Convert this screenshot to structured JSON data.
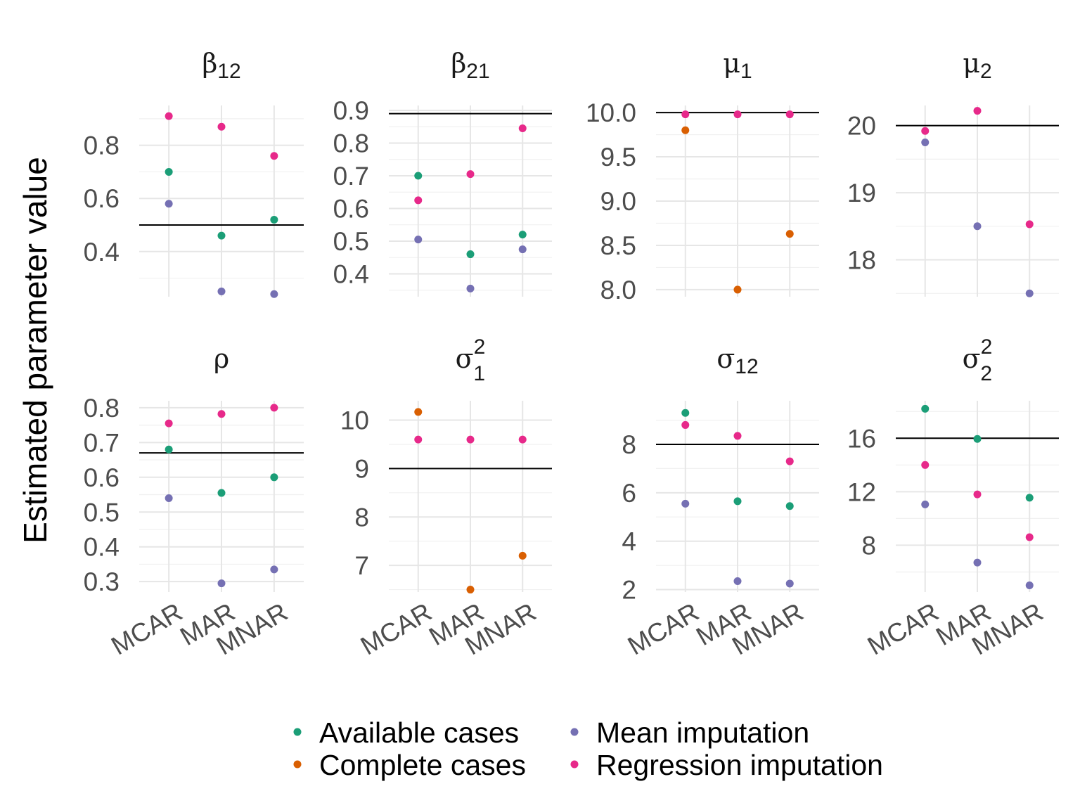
{
  "chart_data": {
    "type": "scatter",
    "ylabel": "Estimated parameter value",
    "categories": [
      "MCAR",
      "MAR",
      "MNAR"
    ],
    "colors": {
      "Available cases": "#1b9e77",
      "Complete cases": "#d95f02",
      "Mean imputation": "#7570b3",
      "Regression imputation": "#e7298a"
    },
    "legend": {
      "position": "bottom",
      "entries": [
        "Available cases",
        "Complete cases",
        "Mean imputation",
        "Regression imputation"
      ]
    },
    "grid": true,
    "panels": [
      {
        "title_base": "β",
        "title_sub": "12",
        "title_sup": "",
        "ylim": [
          0.23,
          0.95
        ],
        "major_ticks": [
          0.4,
          0.6,
          0.8
        ],
        "tick_labels": [
          "0.4",
          "0.6",
          "0.8"
        ],
        "true_value": 0.5,
        "series": [
          {
            "name": "Available cases",
            "values": [
              0.7,
              0.46,
              0.52
            ]
          },
          {
            "name": "Mean imputation",
            "values": [
              0.58,
              0.25,
              0.24
            ]
          },
          {
            "name": "Regression imputation",
            "values": [
              0.91,
              0.87,
              0.76
            ]
          }
        ]
      },
      {
        "title_base": "β",
        "title_sub": "21",
        "title_sup": "",
        "ylim": [
          0.33,
          0.915
        ],
        "major_ticks": [
          0.4,
          0.5,
          0.6,
          0.7,
          0.8,
          0.9
        ],
        "tick_labels": [
          "0.4",
          "0.5",
          "0.6",
          "0.7",
          "0.8",
          "0.9"
        ],
        "true_value": 0.89,
        "series": [
          {
            "name": "Available cases",
            "values": [
              0.7,
              0.46,
              0.52
            ]
          },
          {
            "name": "Mean imputation",
            "values": [
              0.505,
              0.355,
              0.475
            ]
          },
          {
            "name": "Regression imputation",
            "values": [
              0.625,
              0.705,
              0.845
            ]
          }
        ]
      },
      {
        "title_base": "μ",
        "title_sub": "1",
        "title_sup": "",
        "ylim": [
          7.92,
          10.08
        ],
        "major_ticks": [
          8.0,
          8.5,
          9.0,
          9.5,
          10.0
        ],
        "tick_labels": [
          "8.0",
          "8.5",
          "9.0",
          "9.5",
          "10.0"
        ],
        "true_value": 10.0,
        "series": [
          {
            "name": "Complete cases",
            "values": [
              9.8,
              8.0,
              8.63
            ]
          },
          {
            "name": "Regression imputation",
            "values": [
              9.98,
              9.98,
              9.98
            ]
          }
        ]
      },
      {
        "title_base": "μ",
        "title_sub": "2",
        "title_sup": "",
        "ylim": [
          17.45,
          20.3
        ],
        "major_ticks": [
          18,
          19,
          20
        ],
        "tick_labels": [
          "18",
          "19",
          "20"
        ],
        "true_value": 20.0,
        "series": [
          {
            "name": "Mean imputation",
            "values": [
              19.75,
              18.5,
              17.5
            ]
          },
          {
            "name": "Regression imputation",
            "values": [
              19.92,
              20.22,
              18.53
            ]
          }
        ]
      },
      {
        "title_base": "ρ",
        "title_sub": "",
        "title_sup": "",
        "ylim": [
          0.27,
          0.82
        ],
        "major_ticks": [
          0.3,
          0.4,
          0.5,
          0.6,
          0.7,
          0.8
        ],
        "tick_labels": [
          "0.3",
          "0.4",
          "0.5",
          "0.6",
          "0.7",
          "0.8"
        ],
        "true_value": 0.67,
        "series": [
          {
            "name": "Available cases",
            "values": [
              0.68,
              0.555,
              0.6
            ]
          },
          {
            "name": "Mean imputation",
            "values": [
              0.54,
              0.295,
              0.335
            ]
          },
          {
            "name": "Regression imputation",
            "values": [
              0.755,
              0.782,
              0.8
            ]
          }
        ]
      },
      {
        "title_base": "σ",
        "title_sub": "1",
        "title_sup": "2",
        "ylim": [
          6.45,
          10.4
        ],
        "major_ticks": [
          7,
          8,
          9,
          10
        ],
        "tick_labels": [
          "7",
          "8",
          "9",
          "10"
        ],
        "true_value": 9.0,
        "series": [
          {
            "name": "Complete cases",
            "values": [
              10.17,
              6.5,
              7.2
            ]
          },
          {
            "name": "Regression imputation",
            "values": [
              9.6,
              9.6,
              9.6
            ]
          }
        ]
      },
      {
        "title_base": "σ",
        "title_sub": "12",
        "title_sup": "",
        "ylim": [
          1.9,
          9.8
        ],
        "major_ticks": [
          2,
          4,
          6,
          8
        ],
        "tick_labels": [
          "2",
          "4",
          "6",
          "8"
        ],
        "true_value": 8.0,
        "series": [
          {
            "name": "Available cases",
            "values": [
              9.3,
              5.65,
              5.45
            ]
          },
          {
            "name": "Mean imputation",
            "values": [
              5.55,
              2.35,
              2.25
            ]
          },
          {
            "name": "Regression imputation",
            "values": [
              8.8,
              8.35,
              7.3
            ]
          }
        ]
      },
      {
        "title_base": "σ",
        "title_sub": "2",
        "title_sup": "2",
        "ylim": [
          4.5,
          18.8
        ],
        "major_ticks": [
          8,
          12,
          16
        ],
        "tick_labels": [
          "8",
          "12",
          "16"
        ],
        "true_value": 16.0,
        "series": [
          {
            "name": "Available cases",
            "values": [
              18.2,
              15.95,
              11.55
            ]
          },
          {
            "name": "Mean imputation",
            "values": [
              11.05,
              6.7,
              5.0
            ]
          },
          {
            "name": "Regression imputation",
            "values": [
              14.0,
              11.8,
              8.6
            ]
          }
        ]
      }
    ]
  }
}
